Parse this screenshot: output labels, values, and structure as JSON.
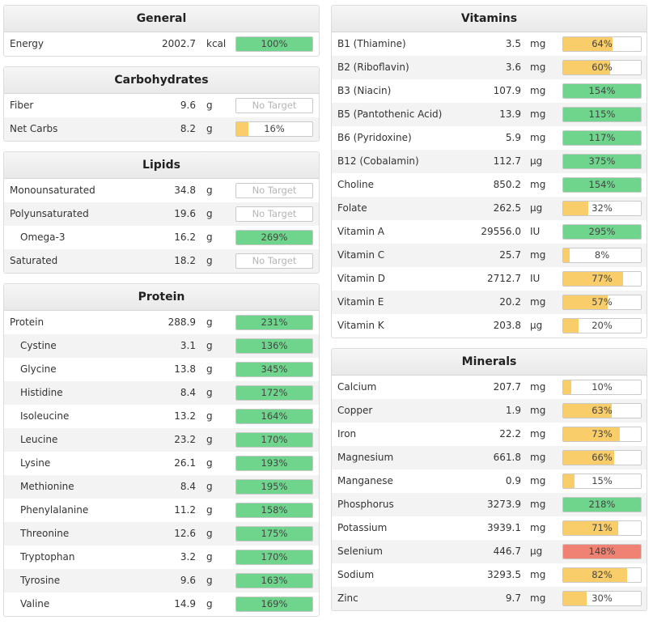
{
  "colors": {
    "green": "#6fd58c",
    "yellow": "#f8cd6a",
    "red": "#ef8272"
  },
  "left": [
    {
      "title": "General",
      "rows": [
        {
          "name": "Energy",
          "amount": "2002.7",
          "unit": "kcal",
          "pct": "100%",
          "fill": 100,
          "color": "green"
        }
      ]
    },
    {
      "title": "Carbohydrates",
      "rows": [
        {
          "name": "Fiber",
          "amount": "9.6",
          "unit": "g",
          "pct": "No Target",
          "fill": 0,
          "color": "none"
        },
        {
          "name": "Net Carbs",
          "amount": "8.2",
          "unit": "g",
          "pct": "16%",
          "fill": 16,
          "color": "yellow"
        }
      ]
    },
    {
      "title": "Lipids",
      "rows": [
        {
          "name": "Monounsaturated",
          "amount": "34.8",
          "unit": "g",
          "pct": "No Target",
          "fill": 0,
          "color": "none"
        },
        {
          "name": "Polyunsaturated",
          "amount": "19.6",
          "unit": "g",
          "pct": "No Target",
          "fill": 0,
          "color": "none"
        },
        {
          "name": "Omega-3",
          "amount": "16.2",
          "unit": "g",
          "pct": "269%",
          "fill": 100,
          "color": "green",
          "indent": true
        },
        {
          "name": "Saturated",
          "amount": "18.2",
          "unit": "g",
          "pct": "No Target",
          "fill": 0,
          "color": "none"
        }
      ]
    },
    {
      "title": "Protein",
      "rows": [
        {
          "name": "Protein",
          "amount": "288.9",
          "unit": "g",
          "pct": "231%",
          "fill": 100,
          "color": "green"
        },
        {
          "name": "Cystine",
          "amount": "3.1",
          "unit": "g",
          "pct": "136%",
          "fill": 100,
          "color": "green",
          "indent": true
        },
        {
          "name": "Glycine",
          "amount": "13.8",
          "unit": "g",
          "pct": "345%",
          "fill": 100,
          "color": "green",
          "indent": true
        },
        {
          "name": "Histidine",
          "amount": "8.4",
          "unit": "g",
          "pct": "172%",
          "fill": 100,
          "color": "green",
          "indent": true
        },
        {
          "name": "Isoleucine",
          "amount": "13.2",
          "unit": "g",
          "pct": "164%",
          "fill": 100,
          "color": "green",
          "indent": true
        },
        {
          "name": "Leucine",
          "amount": "23.2",
          "unit": "g",
          "pct": "170%",
          "fill": 100,
          "color": "green",
          "indent": true
        },
        {
          "name": "Lysine",
          "amount": "26.1",
          "unit": "g",
          "pct": "193%",
          "fill": 100,
          "color": "green",
          "indent": true
        },
        {
          "name": "Methionine",
          "amount": "8.4",
          "unit": "g",
          "pct": "195%",
          "fill": 100,
          "color": "green",
          "indent": true
        },
        {
          "name": "Phenylalanine",
          "amount": "11.2",
          "unit": "g",
          "pct": "158%",
          "fill": 100,
          "color": "green",
          "indent": true
        },
        {
          "name": "Threonine",
          "amount": "12.6",
          "unit": "g",
          "pct": "175%",
          "fill": 100,
          "color": "green",
          "indent": true
        },
        {
          "name": "Tryptophan",
          "amount": "3.2",
          "unit": "g",
          "pct": "170%",
          "fill": 100,
          "color": "green",
          "indent": true
        },
        {
          "name": "Tyrosine",
          "amount": "9.6",
          "unit": "g",
          "pct": "163%",
          "fill": 100,
          "color": "green",
          "indent": true
        },
        {
          "name": "Valine",
          "amount": "14.9",
          "unit": "g",
          "pct": "169%",
          "fill": 100,
          "color": "green",
          "indent": true
        }
      ]
    }
  ],
  "right": [
    {
      "title": "Vitamins",
      "rows": [
        {
          "name": "B1 (Thiamine)",
          "amount": "3.5",
          "unit": "mg",
          "pct": "64%",
          "fill": 64,
          "color": "yellow"
        },
        {
          "name": "B2 (Riboflavin)",
          "amount": "3.6",
          "unit": "mg",
          "pct": "60%",
          "fill": 60,
          "color": "yellow"
        },
        {
          "name": "B3 (Niacin)",
          "amount": "107.9",
          "unit": "mg",
          "pct": "154%",
          "fill": 100,
          "color": "green"
        },
        {
          "name": "B5 (Pantothenic Acid)",
          "amount": "13.9",
          "unit": "mg",
          "pct": "115%",
          "fill": 100,
          "color": "green"
        },
        {
          "name": "B6 (Pyridoxine)",
          "amount": "5.9",
          "unit": "mg",
          "pct": "117%",
          "fill": 100,
          "color": "green"
        },
        {
          "name": "B12 (Cobalamin)",
          "amount": "112.7",
          "unit": "µg",
          "pct": "375%",
          "fill": 100,
          "color": "green"
        },
        {
          "name": "Choline",
          "amount": "850.2",
          "unit": "mg",
          "pct": "154%",
          "fill": 100,
          "color": "green"
        },
        {
          "name": "Folate",
          "amount": "262.5",
          "unit": "µg",
          "pct": "32%",
          "fill": 32,
          "color": "yellow"
        },
        {
          "name": "Vitamin A",
          "amount": "29556.0",
          "unit": "IU",
          "pct": "295%",
          "fill": 100,
          "color": "green"
        },
        {
          "name": "Vitamin C",
          "amount": "25.7",
          "unit": "mg",
          "pct": "8%",
          "fill": 8,
          "color": "yellow"
        },
        {
          "name": "Vitamin D",
          "amount": "2712.7",
          "unit": "IU",
          "pct": "77%",
          "fill": 77,
          "color": "yellow"
        },
        {
          "name": "Vitamin E",
          "amount": "20.2",
          "unit": "mg",
          "pct": "57%",
          "fill": 57,
          "color": "yellow"
        },
        {
          "name": "Vitamin K",
          "amount": "203.8",
          "unit": "µg",
          "pct": "20%",
          "fill": 20,
          "color": "yellow"
        }
      ]
    },
    {
      "title": "Minerals",
      "rows": [
        {
          "name": "Calcium",
          "amount": "207.7",
          "unit": "mg",
          "pct": "10%",
          "fill": 10,
          "color": "yellow"
        },
        {
          "name": "Copper",
          "amount": "1.9",
          "unit": "mg",
          "pct": "63%",
          "fill": 63,
          "color": "yellow"
        },
        {
          "name": "Iron",
          "amount": "22.2",
          "unit": "mg",
          "pct": "73%",
          "fill": 73,
          "color": "yellow"
        },
        {
          "name": "Magnesium",
          "amount": "661.8",
          "unit": "mg",
          "pct": "66%",
          "fill": 66,
          "color": "yellow"
        },
        {
          "name": "Manganese",
          "amount": "0.9",
          "unit": "mg",
          "pct": "15%",
          "fill": 15,
          "color": "yellow"
        },
        {
          "name": "Phosphorus",
          "amount": "3273.9",
          "unit": "mg",
          "pct": "218%",
          "fill": 100,
          "color": "green"
        },
        {
          "name": "Potassium",
          "amount": "3939.1",
          "unit": "mg",
          "pct": "71%",
          "fill": 71,
          "color": "yellow"
        },
        {
          "name": "Selenium",
          "amount": "446.7",
          "unit": "µg",
          "pct": "148%",
          "fill": 100,
          "color": "red"
        },
        {
          "name": "Sodium",
          "amount": "3293.5",
          "unit": "mg",
          "pct": "82%",
          "fill": 82,
          "color": "yellow"
        },
        {
          "name": "Zinc",
          "amount": "9.7",
          "unit": "mg",
          "pct": "30%",
          "fill": 30,
          "color": "yellow"
        }
      ]
    }
  ]
}
